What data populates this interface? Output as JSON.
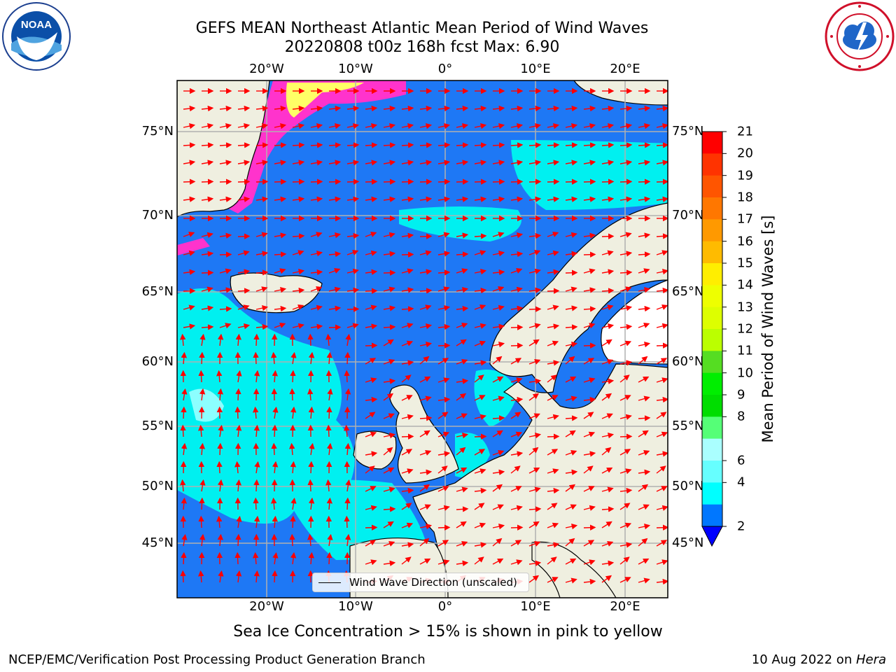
{
  "title": {
    "line1": "GEFS MEAN Northeast Atlantic Mean Period of Wind Waves",
    "line2": "20220808 t00z 168h fcst   Max: 6.90"
  },
  "logos": {
    "left": {
      "icon": "noaa-logo",
      "text": "NOAA"
    },
    "right": {
      "icon": "national-weather-service-logo"
    }
  },
  "axes": {
    "longitude_ticks": [
      "20°W",
      "10°W",
      "0°",
      "10°E",
      "20°E"
    ],
    "latitude_ticks": [
      "75°N",
      "70°N",
      "65°N",
      "60°N",
      "55°N",
      "50°N",
      "45°N"
    ]
  },
  "colorbar": {
    "label": "Mean Period of Wind Waves [s]",
    "ticks": [
      "21",
      "20",
      "19",
      "18",
      "17",
      "16",
      "15",
      "14",
      "13",
      "12",
      "11",
      "10",
      "9",
      "8",
      "6",
      "4",
      "2"
    ],
    "colors_top_to_bottom": [
      "#ff0000",
      "#ff3300",
      "#ff5500",
      "#ff7700",
      "#ff9900",
      "#ffbb00",
      "#ffee00",
      "#eeff00",
      "#ddff00",
      "#bbff00",
      "#55dd22",
      "#00ee00",
      "#00dd00",
      "#55ff77",
      "#aaffff",
      "#66ffff",
      "#00ffff",
      "#0077ff"
    ],
    "under_color": "#0000ff"
  },
  "legend": {
    "label": "Wind Wave Direction (unscaled)"
  },
  "colors": {
    "land": "#efefe0",
    "sea_low": "#1e78f5",
    "sea_mid": "#00f0f0",
    "sea_ice_pink": "#ff33cc",
    "sea_ice_yellow": "#ffff66",
    "arrow": "#ff0000",
    "grid": "#b0b0b0"
  },
  "note": "Sea Ice Concentration > 15% is shown in pink to yellow",
  "footer": {
    "left": "NCEP/EMC/Verification Post Processing Product Generation Branch",
    "date": "10 Aug 2022 on ",
    "machine": "Hera"
  }
}
